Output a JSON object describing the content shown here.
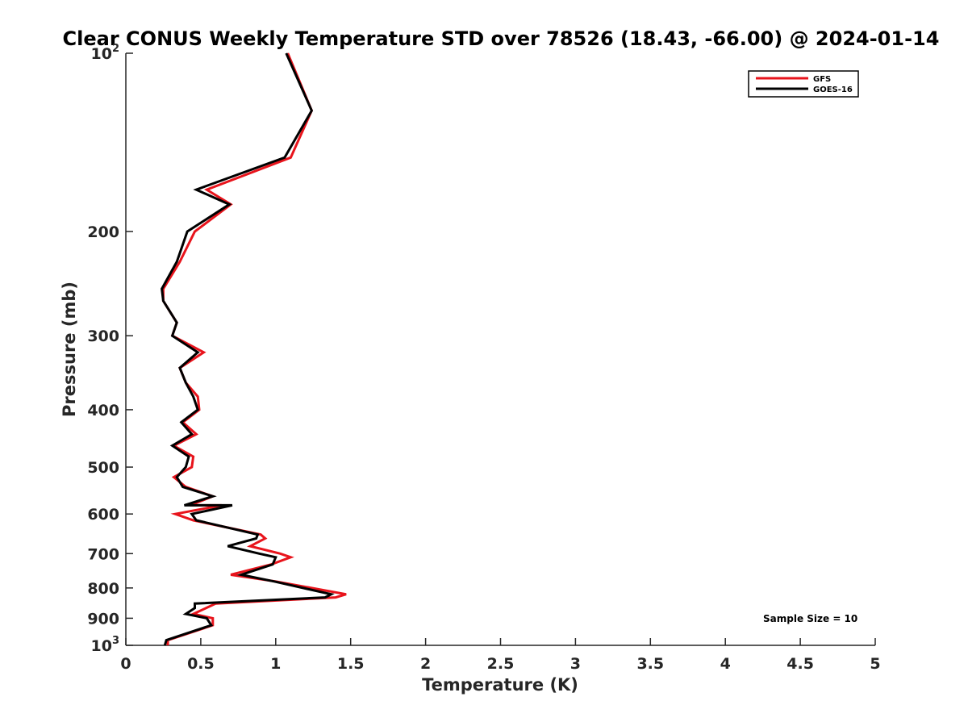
{
  "chart_data": {
    "type": "line",
    "title": "Clear CONUS Weekly Temperature STD over 78526 (18.43, -66.00) @ 2024-01-14",
    "xlabel": "Temperature (K)",
    "ylabel": "Pressure (mb)",
    "xlim": [
      0,
      5
    ],
    "ylim": [
      100,
      1000
    ],
    "y_scale": "log",
    "y_reversed": true,
    "x_ticks": [
      "0",
      "0.5",
      "1",
      "1.5",
      "2",
      "2.5",
      "3",
      "3.5",
      "4",
      "4.5",
      "5"
    ],
    "y_ticks": [
      {
        "value": 100,
        "label": "10",
        "sup": "2"
      },
      {
        "value": 200,
        "label": "200",
        "sup": ""
      },
      {
        "value": 300,
        "label": "300",
        "sup": ""
      },
      {
        "value": 400,
        "label": "400",
        "sup": ""
      },
      {
        "value": 500,
        "label": "500",
        "sup": ""
      },
      {
        "value": 600,
        "label": "600",
        "sup": ""
      },
      {
        "value": 700,
        "label": "700",
        "sup": ""
      },
      {
        "value": 800,
        "label": "800",
        "sup": ""
      },
      {
        "value": 900,
        "label": "900",
        "sup": ""
      },
      {
        "value": 1000,
        "label": "10",
        "sup": "3"
      }
    ],
    "grid": false,
    "legend_position": "top-right",
    "annotation": "Sample Size = 10",
    "series": [
      {
        "name": "GFS",
        "color": "#e8141c",
        "points": [
          [
            1.08,
            100
          ],
          [
            1.24,
            125
          ],
          [
            1.1,
            150
          ],
          [
            0.54,
            170
          ],
          [
            0.7,
            180
          ],
          [
            0.46,
            200
          ],
          [
            0.36,
            225
          ],
          [
            0.25,
            250
          ],
          [
            0.25,
            262
          ],
          [
            0.34,
            285
          ],
          [
            0.31,
            300
          ],
          [
            0.52,
            320
          ],
          [
            0.36,
            340
          ],
          [
            0.4,
            360
          ],
          [
            0.48,
            380
          ],
          [
            0.49,
            400
          ],
          [
            0.38,
            420
          ],
          [
            0.47,
            440
          ],
          [
            0.32,
            460
          ],
          [
            0.45,
            480
          ],
          [
            0.44,
            500
          ],
          [
            0.32,
            520
          ],
          [
            0.4,
            540
          ],
          [
            0.58,
            560
          ],
          [
            0.43,
            580
          ],
          [
            0.64,
            580
          ],
          [
            0.33,
            600
          ],
          [
            0.45,
            615
          ],
          [
            0.9,
            650
          ],
          [
            0.93,
            660
          ],
          [
            0.83,
            680
          ],
          [
            1.03,
            700
          ],
          [
            1.1,
            710
          ],
          [
            0.97,
            730
          ],
          [
            0.7,
            760
          ],
          [
            1.0,
            780
          ],
          [
            1.47,
            820
          ],
          [
            1.4,
            830
          ],
          [
            0.6,
            850
          ],
          [
            0.45,
            885
          ],
          [
            0.58,
            900
          ],
          [
            0.58,
            925
          ],
          [
            0.28,
            980
          ],
          [
            0.28,
            1000
          ]
        ]
      },
      {
        "name": "GOES-16",
        "color": "#000000",
        "points": [
          [
            1.07,
            100
          ],
          [
            1.24,
            125
          ],
          [
            1.06,
            150
          ],
          [
            0.47,
            170
          ],
          [
            0.69,
            180
          ],
          [
            0.41,
            200
          ],
          [
            0.34,
            225
          ],
          [
            0.24,
            250
          ],
          [
            0.25,
            262
          ],
          [
            0.34,
            285
          ],
          [
            0.31,
            300
          ],
          [
            0.48,
            320
          ],
          [
            0.36,
            340
          ],
          [
            0.4,
            360
          ],
          [
            0.45,
            380
          ],
          [
            0.48,
            400
          ],
          [
            0.37,
            420
          ],
          [
            0.44,
            440
          ],
          [
            0.31,
            460
          ],
          [
            0.42,
            480
          ],
          [
            0.4,
            500
          ],
          [
            0.34,
            520
          ],
          [
            0.38,
            540
          ],
          [
            0.58,
            560
          ],
          [
            0.39,
            580
          ],
          [
            0.71,
            580
          ],
          [
            0.44,
            600
          ],
          [
            0.47,
            615
          ],
          [
            0.88,
            650
          ],
          [
            0.87,
            660
          ],
          [
            0.68,
            680
          ],
          [
            0.89,
            700
          ],
          [
            1.0,
            710
          ],
          [
            0.98,
            730
          ],
          [
            0.77,
            760
          ],
          [
            0.99,
            780
          ],
          [
            1.37,
            820
          ],
          [
            1.33,
            830
          ],
          [
            0.46,
            850
          ],
          [
            0.46,
            865
          ],
          [
            0.4,
            885
          ],
          [
            0.54,
            900
          ],
          [
            0.57,
            925
          ],
          [
            0.27,
            980
          ],
          [
            0.26,
            1000
          ]
        ]
      }
    ]
  }
}
